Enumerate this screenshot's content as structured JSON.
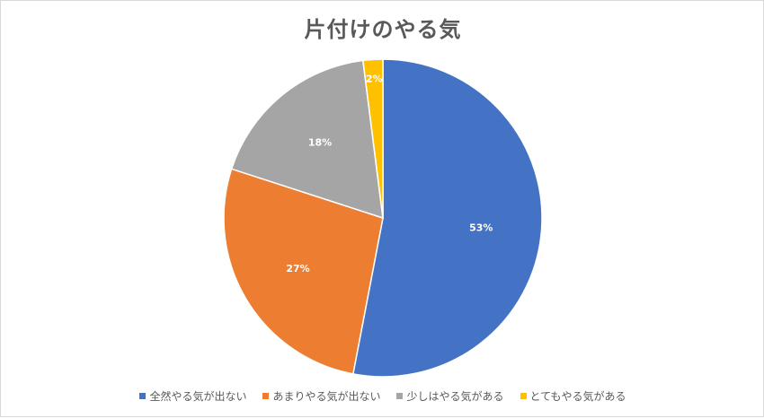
{
  "chart_data": {
    "type": "pie",
    "title": "片付けのやる気",
    "categories": [
      "全然やる気が出ない",
      "あまりやる気が出ない",
      "少しはやる気がある",
      "とてもやる気がある"
    ],
    "values": [
      53,
      27,
      18,
      2
    ],
    "data_labels": [
      "53%",
      "27%",
      "18%",
      "2%"
    ],
    "colors": [
      "#4472C4",
      "#ED7D31",
      "#A5A5A5",
      "#FFC000"
    ],
    "start_angle_deg": 0,
    "direction": "clockwise",
    "legend_position": "bottom"
  }
}
